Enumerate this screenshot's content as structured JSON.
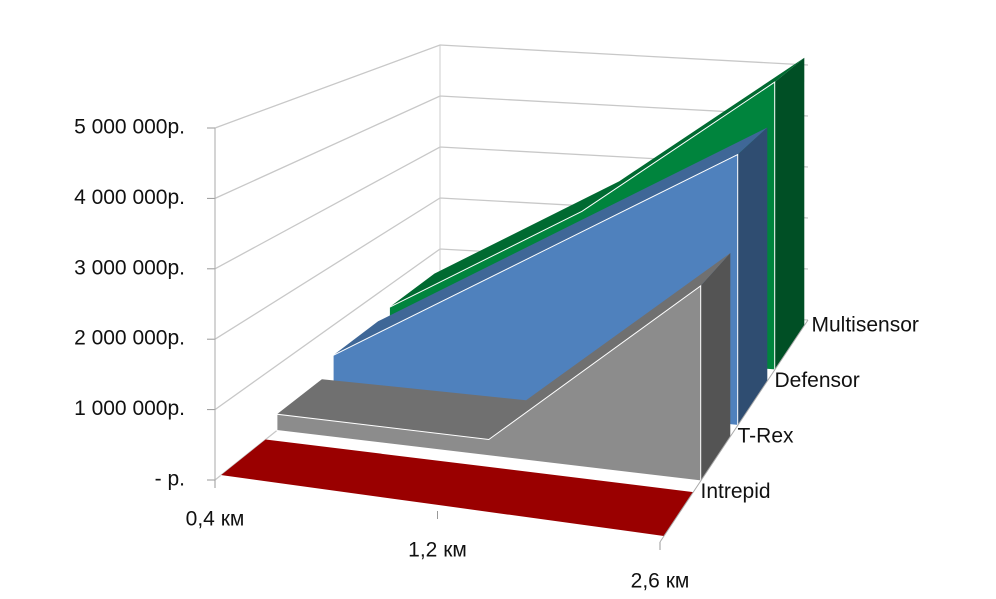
{
  "chart_data": {
    "type": "area3d",
    "categories": [
      "0,4 км",
      "1,2 км",
      "2,6 км"
    ],
    "series": [
      {
        "name": "Intrepid",
        "color": "#c00000",
        "values": [
          0,
          0,
          0
        ]
      },
      {
        "name": "T-Rex",
        "color": "#8c8c8c",
        "values": [
          250000,
          250000,
          3000000
        ]
      },
      {
        "name": "Defensor",
        "color": "#4f81bd",
        "values": [
          500000,
          2500000,
          4500000
        ]
      },
      {
        "name": "Multisensor",
        "color": "#00843d",
        "values": [
          600000,
          2600000,
          5200000
        ]
      }
    ],
    "ylim": [
      0,
      5000000
    ],
    "yticks": [
      {
        "value": 0,
        "label": "-  р."
      },
      {
        "value": 1000000,
        "label": "1 000 000р."
      },
      {
        "value": 2000000,
        "label": "2 000 000р."
      },
      {
        "value": 3000000,
        "label": "3 000 000р."
      },
      {
        "value": 4000000,
        "label": "4 000 000р."
      },
      {
        "value": 5000000,
        "label": "5 000 000р."
      }
    ],
    "grid": true
  }
}
